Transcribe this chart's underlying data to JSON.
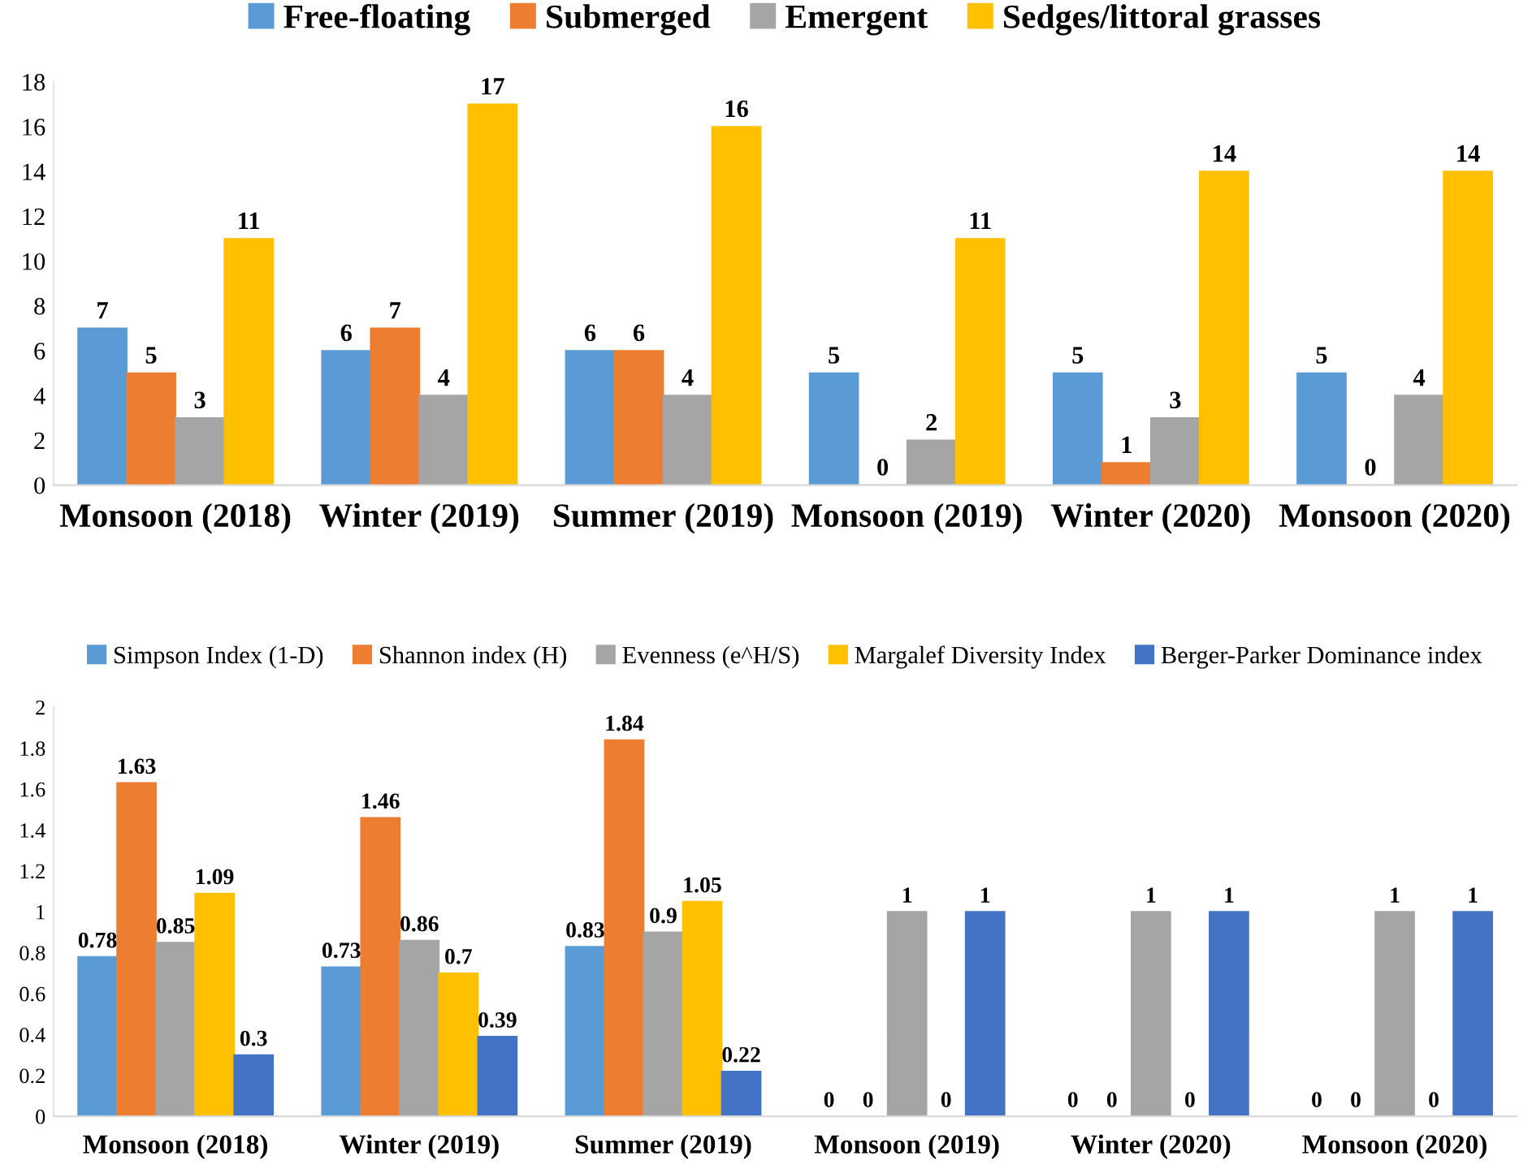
{
  "chart_data": [
    {
      "type": "bar",
      "categories": [
        "Monsoon (2018)",
        "Winter (2019)",
        "Summer (2019)",
        "Monsoon (2019)",
        "Winter (2020)",
        "Monsoon (2020)"
      ],
      "series": [
        {
          "name": "Free-floating",
          "color": "#5b9bd5",
          "values": [
            7,
            6,
            6,
            5,
            5,
            5
          ]
        },
        {
          "name": "Submerged",
          "color": "#ed7d31",
          "values": [
            5,
            7,
            6,
            0,
            1,
            0
          ]
        },
        {
          "name": "Emergent",
          "color": "#a5a5a5",
          "values": [
            3,
            4,
            4,
            2,
            3,
            4
          ]
        },
        {
          "name": "Sedges/littoral grasses",
          "color": "#ffc000",
          "values": [
            11,
            17,
            16,
            11,
            14,
            14
          ]
        }
      ],
      "ylim": [
        0,
        18
      ],
      "yticks": [
        0,
        2,
        4,
        6,
        8,
        10,
        12,
        14,
        16,
        18
      ],
      "grid": false,
      "legend": "top",
      "data_labels": true
    },
    {
      "type": "bar",
      "categories": [
        "Monsoon (2018)",
        "Winter (2019)",
        "Summer (2019)",
        "Monsoon (2019)",
        "Winter (2020)",
        "Monsoon (2020)"
      ],
      "series": [
        {
          "name": "Simpson Index (1-D)",
          "color": "#5b9bd5",
          "values": [
            0.78,
            0.73,
            0.83,
            0,
            0,
            0
          ]
        },
        {
          "name": "Shannon index (H)",
          "color": "#ed7d31",
          "values": [
            1.63,
            1.46,
            1.84,
            0,
            0,
            0
          ]
        },
        {
          "name": "Evenness (e^H/S)",
          "color": "#a5a5a5",
          "values": [
            0.85,
            0.86,
            0.9,
            1,
            1,
            1
          ]
        },
        {
          "name": "Margalef Diversity Index",
          "color": "#ffc000",
          "values": [
            1.09,
            0.7,
            1.05,
            0,
            0,
            0
          ]
        },
        {
          "name": "Berger-Parker Dominance index",
          "color": "#4472c4",
          "values": [
            0.3,
            0.39,
            0.22,
            1,
            1,
            1
          ]
        }
      ],
      "ylim": [
        0,
        2
      ],
      "yticks": [
        0,
        0.2,
        0.4,
        0.6,
        0.8,
        1,
        1.2,
        1.4,
        1.6,
        1.8,
        2
      ],
      "grid": false,
      "legend": "top",
      "data_labels": true
    }
  ]
}
